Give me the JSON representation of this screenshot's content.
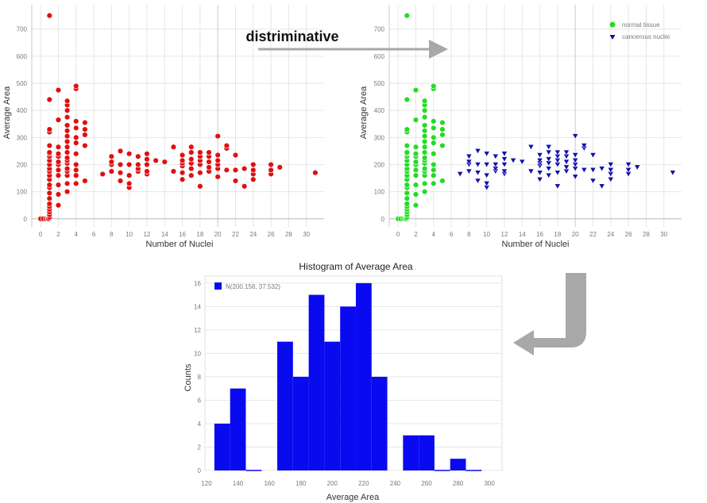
{
  "caption": "distriminative",
  "colors": {
    "normal": "#e01010",
    "green": "#22dd22",
    "cancer": "#1111aa",
    "hist": "#0a0af0",
    "arrow": "#a8a8a8"
  },
  "chart_data": [
    {
      "type": "scatter",
      "xlabel": "Number of Nuclei",
      "ylabel": "Average Area",
      "xlim": [
        -1,
        32
      ],
      "ylim": [
        -30,
        790
      ],
      "xticks": [
        0,
        2,
        4,
        6,
        8,
        10,
        12,
        14,
        16,
        18,
        20,
        22,
        24,
        26,
        28,
        30
      ],
      "yticks": [
        0,
        100,
        200,
        300,
        400,
        500,
        600,
        700
      ],
      "grid": true,
      "series": [
        {
          "marker": "circle",
          "x": [
            0,
            0.3,
            0.6,
            0.8,
            0.9,
            1,
            1,
            1,
            1,
            1,
            1,
            1,
            1,
            1,
            1,
            1,
            1,
            1,
            1,
            1,
            1,
            1,
            1,
            1,
            1,
            1,
            1,
            1,
            1,
            2,
            2,
            2,
            2,
            2,
            2,
            2,
            2,
            2,
            2,
            2,
            2,
            3,
            3,
            3,
            3,
            3,
            3,
            3,
            3,
            3,
            3,
            3,
            3,
            3,
            3,
            3,
            3,
            3,
            3,
            4,
            4,
            4,
            4,
            4,
            4,
            4,
            4,
            4,
            4,
            4,
            5,
            5,
            5,
            5,
            5,
            7,
            8,
            8,
            8,
            8,
            9,
            9,
            9,
            9,
            10,
            10,
            10,
            10,
            10,
            11,
            11,
            11,
            11,
            12,
            12,
            12,
            12,
            12,
            13,
            14,
            15,
            15,
            16,
            16,
            16,
            16,
            16,
            16,
            17,
            17,
            17,
            17,
            17,
            17,
            18,
            18,
            18,
            18,
            18,
            18,
            19,
            19,
            19,
            19,
            19,
            20,
            20,
            20,
            20,
            20,
            20,
            21,
            21,
            21,
            22,
            22,
            22,
            23,
            23,
            24,
            24,
            24,
            24,
            26,
            26,
            26,
            27,
            31
          ],
          "y": [
            0,
            0,
            0,
            0,
            0,
            5,
            15,
            25,
            35,
            45,
            55,
            75,
            95,
            115,
            125,
            145,
            160,
            175,
            185,
            200,
            215,
            230,
            240,
            245,
            270,
            320,
            330,
            440,
            750,
            50,
            90,
            125,
            160,
            180,
            200,
            210,
            230,
            240,
            265,
            365,
            475,
            100,
            130,
            160,
            175,
            185,
            205,
            215,
            225,
            245,
            265,
            285,
            305,
            325,
            345,
            375,
            400,
            420,
            435,
            130,
            160,
            180,
            200,
            240,
            280,
            300,
            335,
            360,
            480,
            490,
            140,
            270,
            310,
            330,
            355,
            165,
            175,
            200,
            210,
            230,
            140,
            170,
            200,
            250,
            115,
            130,
            160,
            200,
            240,
            175,
            185,
            200,
            230,
            165,
            175,
            200,
            220,
            240,
            215,
            210,
            175,
            265,
            145,
            170,
            195,
            205,
            215,
            235,
            160,
            185,
            205,
            220,
            245,
            265,
            120,
            170,
            200,
            215,
            230,
            245,
            175,
            190,
            210,
            230,
            245,
            155,
            185,
            200,
            215,
            235,
            305,
            180,
            260,
            270,
            140,
            180,
            235,
            120,
            185,
            145,
            165,
            180,
            200,
            165,
            180,
            200,
            190,
            170
          ]
        }
      ]
    },
    {
      "type": "scatter",
      "xlabel": "Number of Nuclei",
      "ylabel": "Average Area",
      "xlim": [
        -1,
        32
      ],
      "ylim": [
        -30,
        790
      ],
      "xticks": [
        0,
        2,
        4,
        6,
        8,
        10,
        12,
        14,
        16,
        18,
        20,
        22,
        24,
        26,
        28,
        30
      ],
      "yticks": [
        0,
        100,
        200,
        300,
        400,
        500,
        600,
        700
      ],
      "grid": true,
      "legend_position": "top-right",
      "series": [
        {
          "name": "normal tissue",
          "marker": "circle",
          "x": [
            0,
            0.3,
            0.6,
            0.8,
            0.9,
            1,
            1,
            1,
            1,
            1,
            1,
            1,
            1,
            1,
            1,
            1,
            1,
            1,
            1,
            1,
            1,
            1,
            1,
            1,
            1,
            1,
            1,
            1,
            1,
            2,
            2,
            2,
            2,
            2,
            2,
            2,
            2,
            2,
            2,
            2,
            2,
            3,
            3,
            3,
            3,
            3,
            3,
            3,
            3,
            3,
            3,
            3,
            3,
            3,
            3,
            3,
            3,
            3,
            3,
            4,
            4,
            4,
            4,
            4,
            4,
            4,
            4,
            4,
            4,
            4,
            5,
            5,
            5,
            5,
            5
          ],
          "y": [
            0,
            0,
            0,
            0,
            0,
            5,
            15,
            25,
            35,
            45,
            55,
            75,
            95,
            115,
            125,
            145,
            160,
            175,
            185,
            200,
            215,
            230,
            240,
            245,
            270,
            320,
            330,
            440,
            750,
            50,
            90,
            125,
            160,
            180,
            200,
            210,
            230,
            240,
            265,
            365,
            475,
            100,
            130,
            160,
            175,
            185,
            205,
            215,
            225,
            245,
            265,
            285,
            305,
            325,
            345,
            375,
            400,
            420,
            435,
            130,
            160,
            180,
            200,
            240,
            280,
            300,
            335,
            360,
            480,
            490,
            140,
            270,
            310,
            330,
            355
          ]
        },
        {
          "name": "cancerous nuclei",
          "marker": "triangle-down",
          "x": [
            7,
            8,
            8,
            8,
            8,
            9,
            9,
            9,
            9,
            10,
            10,
            10,
            10,
            10,
            11,
            11,
            11,
            11,
            12,
            12,
            12,
            12,
            12,
            13,
            14,
            15,
            15,
            16,
            16,
            16,
            16,
            16,
            16,
            17,
            17,
            17,
            17,
            17,
            17,
            18,
            18,
            18,
            18,
            18,
            18,
            19,
            19,
            19,
            19,
            19,
            20,
            20,
            20,
            20,
            20,
            20,
            21,
            21,
            21,
            22,
            22,
            22,
            23,
            23,
            24,
            24,
            24,
            24,
            26,
            26,
            26,
            27,
            31
          ],
          "y": [
            165,
            175,
            200,
            210,
            230,
            140,
            170,
            200,
            250,
            115,
            130,
            160,
            200,
            240,
            175,
            185,
            200,
            230,
            165,
            175,
            200,
            220,
            240,
            215,
            210,
            175,
            265,
            145,
            170,
            195,
            205,
            215,
            235,
            160,
            185,
            205,
            220,
            245,
            265,
            120,
            170,
            200,
            215,
            230,
            245,
            175,
            190,
            210,
            230,
            245,
            155,
            185,
            200,
            215,
            235,
            305,
            180,
            260,
            270,
            140,
            180,
            235,
            120,
            185,
            145,
            165,
            180,
            200,
            165,
            180,
            200,
            190,
            170
          ]
        }
      ]
    },
    {
      "type": "bar",
      "title": "Histogram of Average Area",
      "xlabel": "Average Area",
      "ylabel": "Counts",
      "legend_position": "top-left",
      "series": [
        {
          "name": "N(200.158, 37.532)",
          "bins": [
            [
              125,
              135
            ],
            [
              135,
              145
            ],
            [
              145,
              155
            ],
            [
              165,
              175
            ],
            [
              175,
              185
            ],
            [
              185,
              195
            ],
            [
              195,
              205
            ],
            [
              205,
              215
            ],
            [
              215,
              225
            ],
            [
              225,
              235
            ],
            [
              245,
              255
            ],
            [
              255,
              265
            ],
            [
              265,
              275
            ],
            [
              275,
              285
            ],
            [
              285,
              295
            ]
          ],
          "values": [
            4,
            7,
            0,
            11,
            8,
            15,
            11,
            14,
            16,
            8,
            3,
            3,
            0,
            1,
            0
          ]
        }
      ],
      "xlim": [
        119,
        308
      ],
      "ylim": [
        0,
        16.6
      ],
      "xticks": [
        120,
        140,
        160,
        180,
        200,
        220,
        240,
        260,
        280,
        300
      ],
      "yticks": [
        0,
        2,
        4,
        6,
        8,
        10,
        12,
        14,
        16
      ],
      "grid": true
    }
  ]
}
